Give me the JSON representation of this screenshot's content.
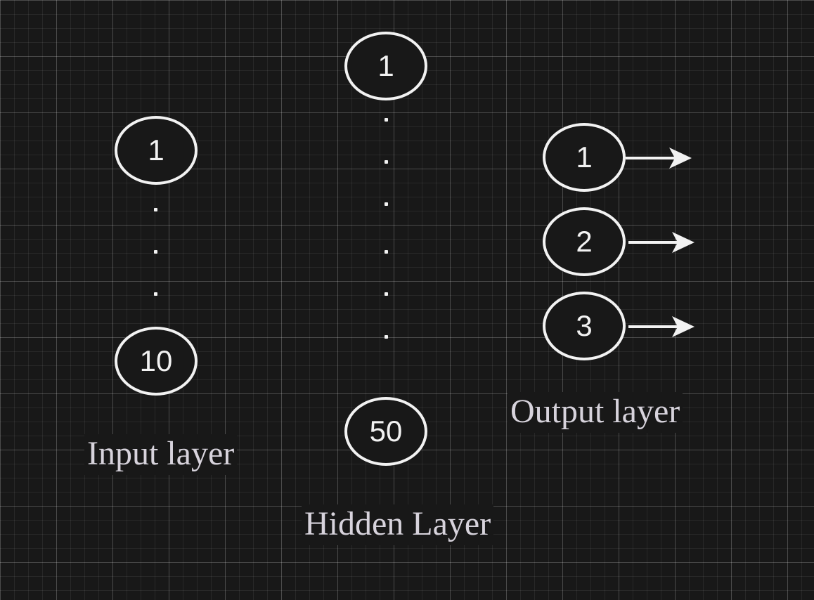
{
  "layers": {
    "input": {
      "label": "Input layer",
      "first": "1",
      "last": "10"
    },
    "hidden": {
      "label": "Hidden Layer",
      "first": "1",
      "last": "50"
    },
    "output": {
      "label": "Output layer",
      "nodes": [
        "1",
        "2",
        "3"
      ]
    }
  },
  "colors": {
    "background": "#181818",
    "stroke": "#f2f2f2",
    "label": "#d7d3dc"
  }
}
